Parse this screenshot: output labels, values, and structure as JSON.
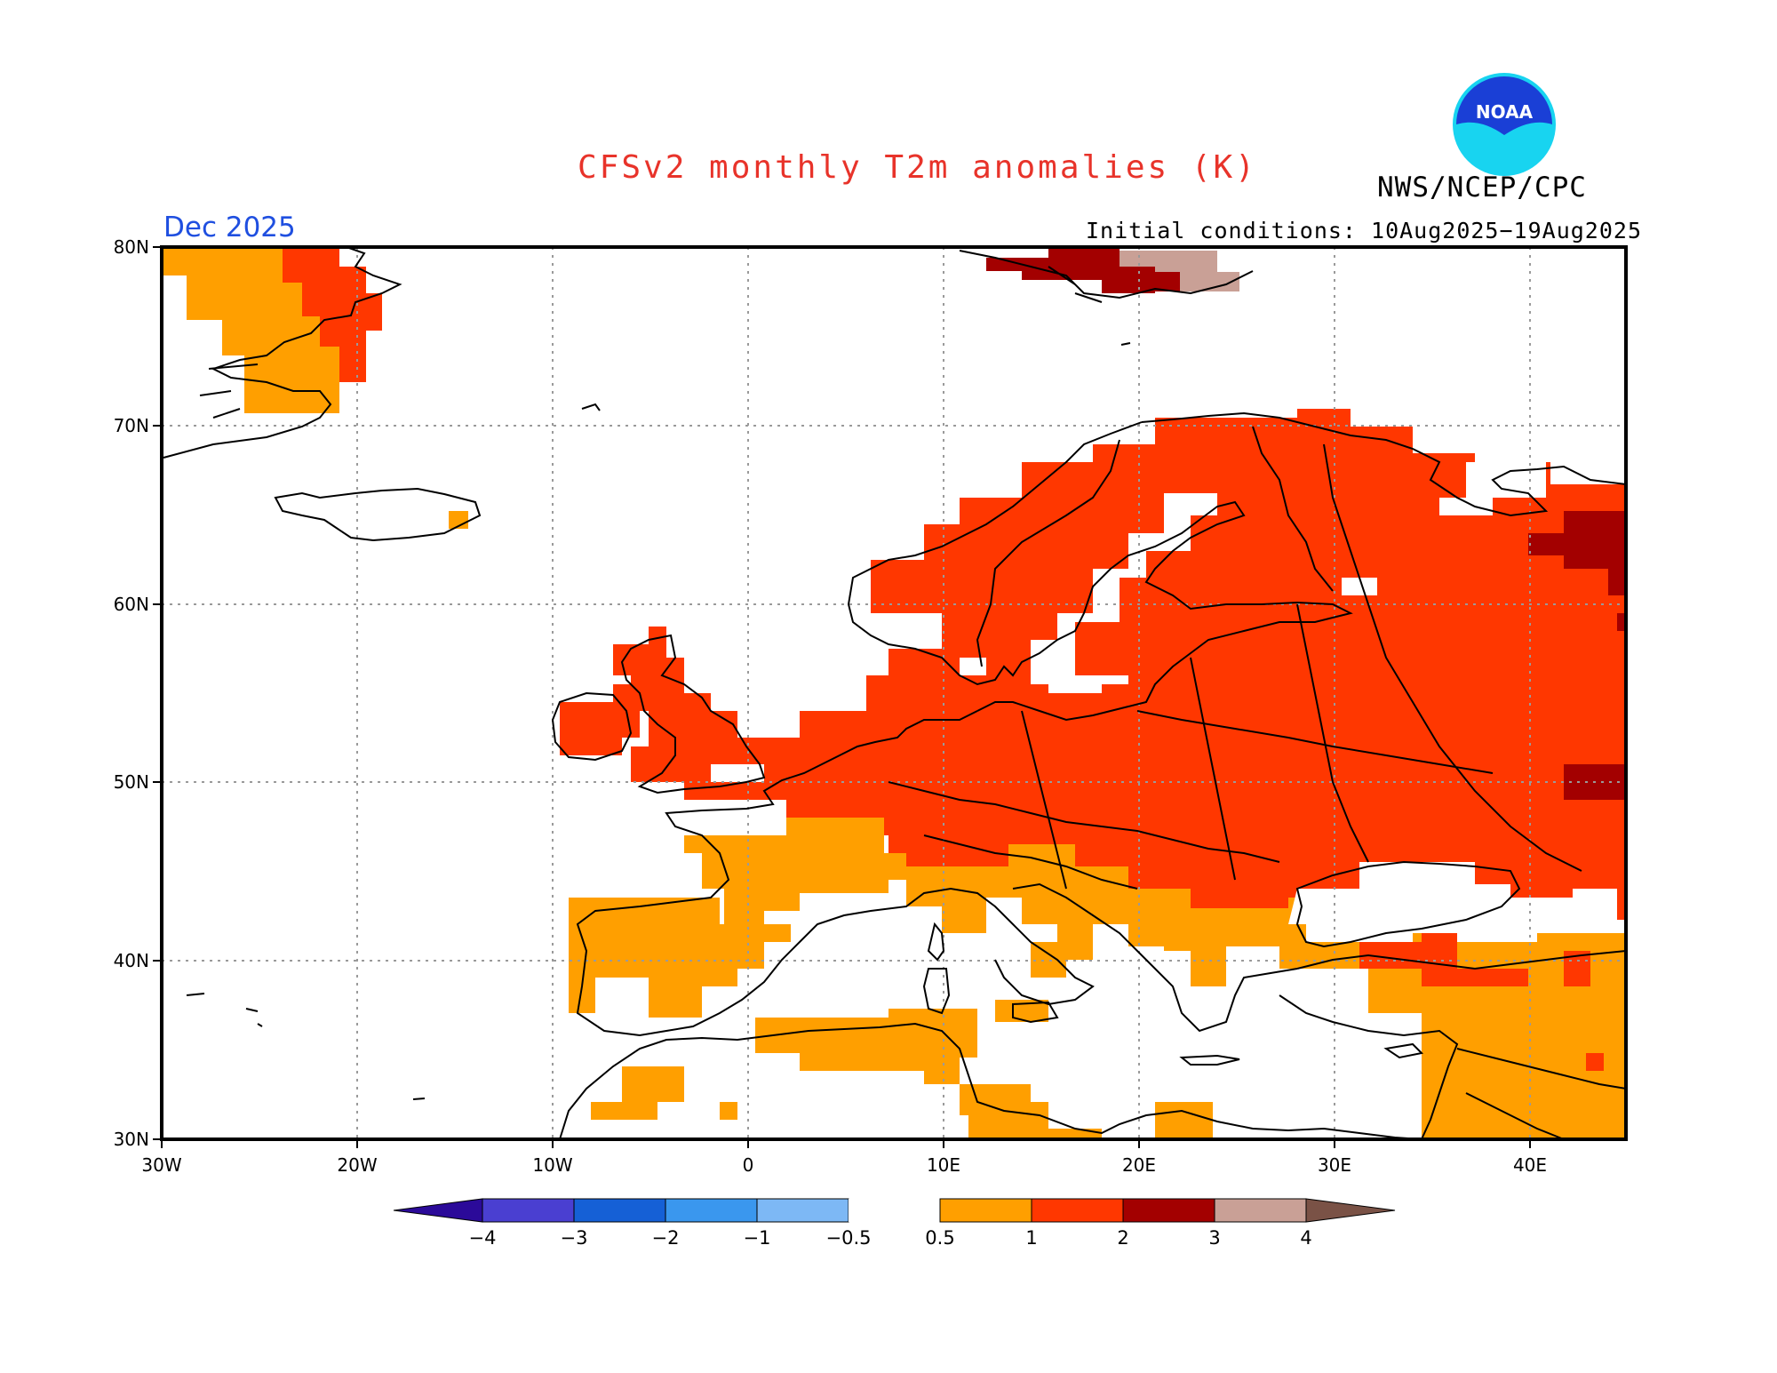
{
  "title": "CFSv2 monthly T2m anomalies (K)",
  "month_label": "Dec 2025",
  "initial_conditions": "Initial conditions: 10Aug2025−19Aug2025",
  "agency": "NWS/NCEP/CPC",
  "logo_text": "NOAA",
  "colors": {
    "title": "#e8332a",
    "month": "#1f4fe0",
    "below_4": "#2b0a99",
    "n4_n3": "#4a3fd1",
    "n3_n2": "#1560d6",
    "n2_n1": "#3a97ee",
    "n1_n05": "#7db8f5",
    "neutral": "#ffffff",
    "p05_1": "#ff9f00",
    "p1_2": "#ff3700",
    "p2_3": "#a30000",
    "p3_4": "#c9a096",
    "above_4": "#7a5246",
    "coast": "#000000",
    "grid": "#9a9a9a",
    "logo_outer": "#1a3fd6",
    "logo_inner": "#18d4f0"
  },
  "map": {
    "lon_range": [
      -30,
      45
    ],
    "lat_range": [
      30,
      80
    ],
    "lat_ticks": [
      "80N",
      "70N",
      "60N",
      "50N",
      "40N",
      "30N"
    ],
    "lon_ticks": [
      "30W",
      "20W",
      "10W",
      "0",
      "10E",
      "20E",
      "30E",
      "40E"
    ]
  },
  "legend": {
    "tick_labels": [
      "−4",
      "−3",
      "−2",
      "−1",
      "−0.5",
      "0.5",
      "1",
      "2",
      "3",
      "4"
    ]
  }
}
